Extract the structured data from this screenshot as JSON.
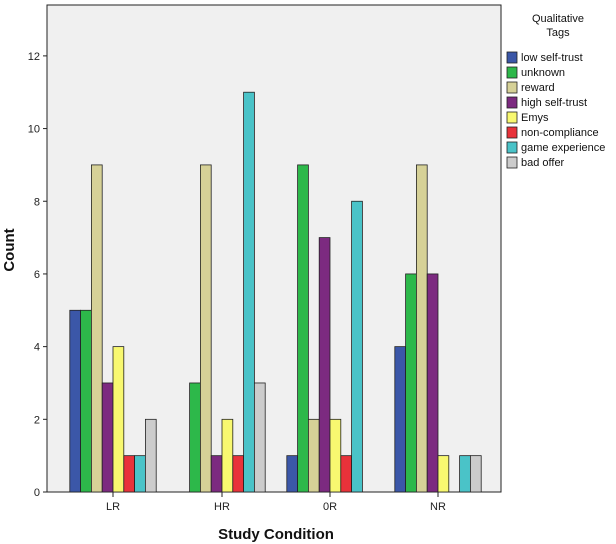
{
  "chart_data": {
    "type": "bar",
    "title": "",
    "xlabel": "Study Condition",
    "ylabel": "Count",
    "ylim": [
      0,
      13.4
    ],
    "yticks": [
      0,
      2,
      4,
      6,
      8,
      10,
      12
    ],
    "grid": false,
    "legend": {
      "title": "Qualitative Tags",
      "placement": "right"
    },
    "categories": [
      "LR",
      "HR",
      "0R",
      "NR"
    ],
    "series": [
      {
        "name": "low self-trust",
        "color": "#3b57a8",
        "values": [
          5,
          0,
          1,
          4
        ]
      },
      {
        "name": "unknown",
        "color": "#2db84a",
        "values": [
          5,
          3,
          9,
          6
        ]
      },
      {
        "name": "reward",
        "color": "#d6d197",
        "values": [
          9,
          9,
          2,
          9
        ]
      },
      {
        "name": "high self-trust",
        "color": "#7c2a80",
        "values": [
          3,
          1,
          7,
          6
        ]
      },
      {
        "name": "Emys",
        "color": "#f8f870",
        "values": [
          4,
          2,
          2,
          1
        ]
      },
      {
        "name": "non-compliance",
        "color": "#e8323a",
        "values": [
          1,
          1,
          1,
          0
        ]
      },
      {
        "name": "game experience",
        "color": "#4ac3c8",
        "values": [
          1,
          11,
          8,
          1
        ]
      },
      {
        "name": "bad offer",
        "color": "#cccccc",
        "values": [
          2,
          3,
          0,
          1
        ]
      }
    ]
  }
}
